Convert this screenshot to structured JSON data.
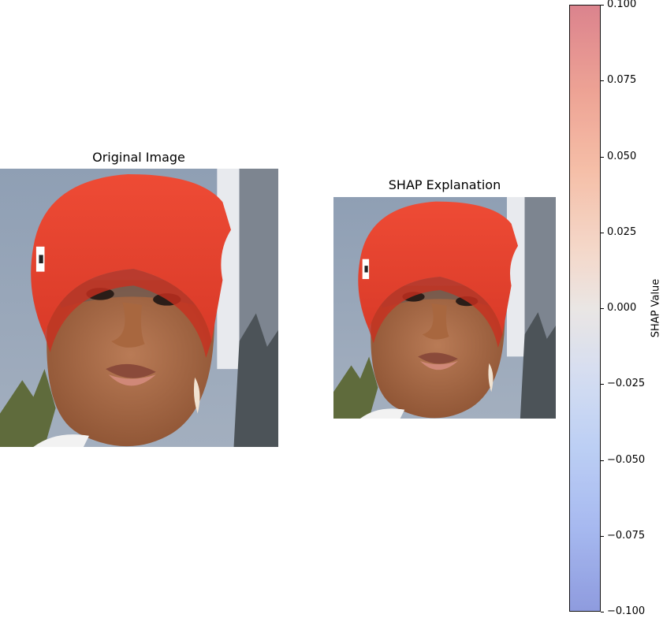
{
  "chart_data": {
    "type": "image-explanation",
    "panels": [
      {
        "title": "Original Image",
        "content": "face-photo"
      },
      {
        "title": "SHAP Explanation",
        "content": "face-photo-with-shap-overlay"
      }
    ],
    "colorbar": {
      "label": "SHAP Value",
      "range": [
        -0.1,
        0.1
      ],
      "colormap": "bwr",
      "tick_values": [
        0.1,
        0.075,
        0.05,
        0.025,
        0.0,
        -0.025,
        -0.05,
        -0.075,
        -0.1
      ],
      "tick_labels": [
        "0.100",
        "0.075",
        "0.050",
        "0.025",
        "0.000",
        "−0.025",
        "−0.050",
        "−0.075",
        "−0.100"
      ]
    }
  }
}
